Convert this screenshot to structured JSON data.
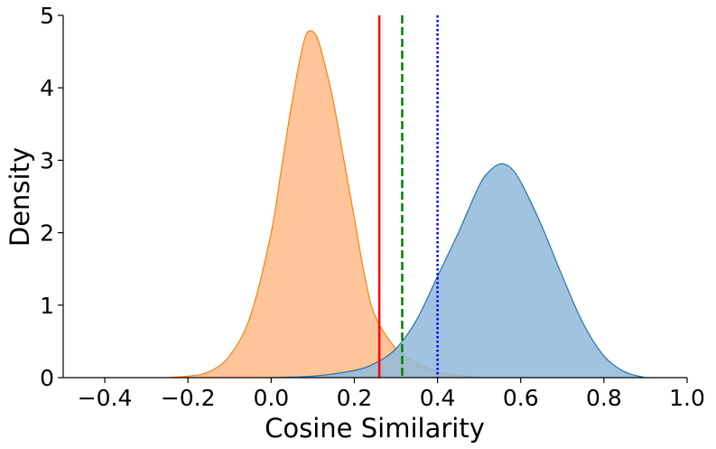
{
  "chart_data": {
    "type": "area",
    "xlabel": "Cosine Similarity",
    "ylabel": "Density",
    "xlim": [
      -0.5,
      1.0
    ],
    "ylim": [
      0,
      5
    ],
    "x_ticks": [
      -0.4,
      -0.2,
      0.0,
      0.2,
      0.4,
      0.6,
      0.8,
      1.0
    ],
    "x_tick_labels": [
      "−0.4",
      "−0.2",
      "0.0",
      "0.2",
      "0.4",
      "0.6",
      "0.8",
      "1.0"
    ],
    "y_ticks": [
      0,
      1,
      2,
      3,
      4,
      5
    ],
    "y_tick_labels": [
      "0",
      "1",
      "2",
      "3",
      "4",
      "5"
    ],
    "grid": false,
    "series": [
      {
        "fill": "#ffbb88",
        "stroke": "#ff7f0e",
        "x": [
          -0.25,
          -0.2,
          -0.15,
          -0.1,
          -0.05,
          0.0,
          0.025,
          0.05,
          0.075,
          0.09,
          0.11,
          0.13,
          0.15,
          0.175,
          0.2,
          0.225,
          0.25,
          0.3,
          0.35,
          0.4,
          0.45,
          0.5
        ],
        "y": [
          0.0,
          0.02,
          0.08,
          0.3,
          0.85,
          2.0,
          2.9,
          3.8,
          4.55,
          4.78,
          4.7,
          4.3,
          3.8,
          3.0,
          2.2,
          1.4,
          0.85,
          0.4,
          0.2,
          0.08,
          0.03,
          0.0
        ]
      },
      {
        "fill": "#90b9d9",
        "stroke": "#1f77b4",
        "x": [
          0.0,
          0.1,
          0.2,
          0.25,
          0.3,
          0.35,
          0.4,
          0.45,
          0.5,
          0.525,
          0.55,
          0.575,
          0.6,
          0.65,
          0.7,
          0.75,
          0.8,
          0.85,
          0.9
        ],
        "y": [
          0.0,
          0.02,
          0.1,
          0.2,
          0.4,
          0.8,
          1.4,
          2.0,
          2.65,
          2.85,
          2.95,
          2.9,
          2.7,
          2.1,
          1.4,
          0.75,
          0.3,
          0.08,
          0.0
        ]
      }
    ],
    "vlines": [
      {
        "x": 0.26,
        "color": "#ff0000",
        "style": "solid"
      },
      {
        "x": 0.315,
        "color": "#008000",
        "style": "dashed"
      },
      {
        "x": 0.4,
        "color": "#0000ff",
        "style": "dotted"
      }
    ]
  }
}
